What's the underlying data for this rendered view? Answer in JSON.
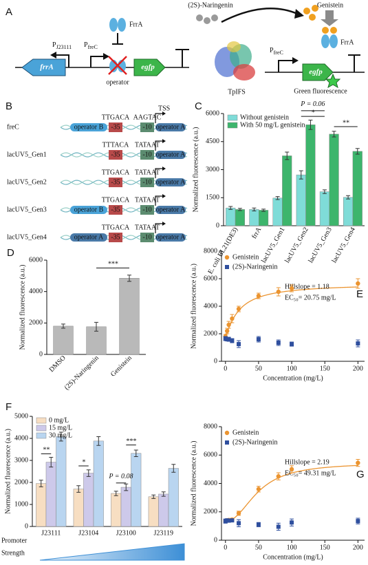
{
  "panel_a": {
    "label": "A",
    "promoter_left": {
      "p": "P",
      "sub": "J23111"
    },
    "promoter_mid": {
      "p": "P",
      "sub": "freC"
    },
    "frra_gene": "frrA",
    "egfp_gene": "egfp",
    "repressor": "FrrA",
    "operator": "operator",
    "substrate": "(2S)-Naringenin",
    "enzyme": "TpIFS",
    "inducer": "Genistein",
    "repressor_2": "FrrA",
    "promoter_right": {
      "p": "P",
      "sub": "freC"
    },
    "egfp_gene_2": "egfp",
    "output": "Green fluorescence"
  },
  "panel_b": {
    "label": "B",
    "box35": "-35",
    "box10": "-10",
    "tss": "TSS",
    "rows": [
      {
        "name": "freC",
        "left_operator": "operator B",
        "motif35": "TTGACA",
        "motif10": "AAGTAC",
        "right_operator": "operator A"
      },
      {
        "name": "lacUV5_Gen1",
        "motif35": "TTTACA",
        "motif10": "TATAAT",
        "right_operator": "operator A"
      },
      {
        "name": "lacUV5_Gen2",
        "motif35": "TTGACA",
        "motif10": "TATAAT",
        "right_operator": "operator A"
      },
      {
        "name": "lacUV5_Gen3",
        "left_operator": "operator B",
        "motif35": "TTGACA",
        "motif10": "TATAAT",
        "right_operator": "operator A"
      },
      {
        "name": "lacUV5_Gen4",
        "left_operator": "operator A",
        "motif35": "TTGACA",
        "motif10": "TATAAT",
        "right_operator": "operator A"
      }
    ]
  },
  "chart_data": [
    {
      "type": "bar",
      "panel": "C",
      "ylabel": "Normalized fluorescence (a.u.)",
      "categories": [
        "E. coli BL21(DE3)",
        "frrA",
        "lacUV5_Gen1",
        "lacUV5_Gen2",
        "lacUV5_Gen3",
        "lacUV5_Gen4"
      ],
      "series": [
        {
          "name": "Without genistein",
          "color": "#7fdcd8",
          "values": [
            950,
            870,
            1480,
            2720,
            1820,
            1520
          ],
          "errors": [
            80,
            80,
            80,
            220,
            100,
            90
          ]
        },
        {
          "name": "With 50 mg/L genistein",
          "color": "#3db56c",
          "values": [
            870,
            830,
            3740,
            5400,
            4900,
            3980
          ],
          "errors": [
            60,
            60,
            200,
            250,
            150,
            150
          ]
        }
      ],
      "ylim": [
        0,
        6000
      ],
      "yticks": [
        0,
        1500,
        3000,
        4500,
        6000
      ],
      "annotations": [
        "*",
        "P = 0.06",
        "**"
      ]
    },
    {
      "type": "bar",
      "panel": "D",
      "ylabel": "Normalized fluorescence (a.u.)",
      "categories": [
        "DMSO",
        "(2S)-Naringenin",
        "Genistein"
      ],
      "series": [
        {
          "color": "#b9b9b9",
          "values": [
            1800,
            1760,
            4850
          ],
          "errors": [
            130,
            280,
            200
          ]
        }
      ],
      "ylim": [
        0,
        6000
      ],
      "yticks": [
        0,
        2000,
        4000,
        6000
      ],
      "annotations": [
        "***"
      ]
    },
    {
      "type": "scatter",
      "panel": "E",
      "xlabel": "Concentration (mg/L)",
      "ylabel": "Normalized fluorescence (a.u.)",
      "series": [
        {
          "name": "Genistein",
          "color": "#eb9430",
          "marker": "circle",
          "x": [
            0,
            2.5,
            5,
            10,
            20,
            50,
            80,
            100,
            200
          ],
          "values": [
            1800,
            2200,
            2650,
            3100,
            3800,
            4750,
            5050,
            5300,
            5650
          ],
          "errors": [
            150,
            200,
            250,
            300,
            200,
            200,
            300,
            250,
            350
          ],
          "fit": {
            "hillslope": {
              "value": 1.18,
              "label": "Hillslope = 1.18"
            },
            "ec50": {
              "value": 20.75,
              "label": "EC₅₀= 20.75 mg/L"
            }
          }
        },
        {
          "name": "(2S)-Naringenin",
          "color": "#2f4f9e",
          "marker": "square",
          "x": [
            0,
            2.5,
            5,
            10,
            20,
            50,
            80,
            100,
            200
          ],
          "values": [
            1650,
            1600,
            1600,
            1500,
            1250,
            1600,
            1350,
            1250,
            1300
          ],
          "errors": [
            150,
            100,
            150,
            150,
            250,
            200,
            200,
            150,
            250
          ]
        }
      ],
      "xlim": [
        -6,
        210
      ],
      "xticks": [
        0,
        50,
        100,
        150,
        200
      ],
      "ylim": [
        0,
        8000
      ],
      "yticks": [
        0,
        2000,
        4000,
        6000,
        8000
      ]
    },
    {
      "type": "bar",
      "panel": "F",
      "ylabel": "Normalized fluorescence (a.u.)",
      "xlabel": [
        "Promoter",
        "Strength"
      ],
      "categories": [
        "J23111",
        "J23104",
        "J23100",
        "J23119"
      ],
      "series": [
        {
          "name": "0 mg/L",
          "color": "#f7dec2",
          "values": [
            1950,
            1700,
            1500,
            1350
          ],
          "errors": [
            150,
            150,
            100,
            80
          ]
        },
        {
          "name": "15 mg/L",
          "color": "#cdc9ea",
          "values": [
            2920,
            2420,
            1780,
            1470
          ],
          "errors": [
            220,
            150,
            150,
            100
          ]
        },
        {
          "name": "30 mg/L",
          "color": "#b9d5f0",
          "values": [
            4080,
            3880,
            3320,
            2640
          ],
          "errors": [
            200,
            200,
            150,
            180
          ]
        }
      ],
      "ylim": [
        0,
        5000
      ],
      "yticks": [
        0,
        1000,
        2000,
        3000,
        4000,
        5000
      ],
      "annotations": [
        "**",
        "*",
        "P = 0.08",
        "***"
      ]
    },
    {
      "type": "scatter",
      "panel": "G",
      "xlabel": "Concentration (mg/L)",
      "ylabel": "Normalized fluorescence (a.u.)",
      "series": [
        {
          "name": "Genistein",
          "color": "#eb9430",
          "marker": "circle",
          "x": [
            0,
            2.5,
            5,
            10,
            20,
            50,
            80,
            100,
            200
          ],
          "values": [
            1350,
            1400,
            1420,
            1450,
            1900,
            3600,
            4500,
            5000,
            5450
          ],
          "errors": [
            100,
            100,
            100,
            100,
            150,
            200,
            250,
            250,
            250
          ],
          "fit": {
            "hillslope": {
              "value": 2.19,
              "label": "Hillslope = 2.19"
            },
            "ec50": {
              "value": 49.31,
              "label": "EC₅₀= 49.31 mg/L"
            }
          }
        },
        {
          "name": "(2S)-Naringenin",
          "color": "#2f4f9e",
          "marker": "square",
          "x": [
            0,
            2.5,
            5,
            10,
            20,
            50,
            80,
            100,
            200
          ],
          "values": [
            1350,
            1400,
            1380,
            1400,
            1200,
            1100,
            950,
            1250,
            1350
          ],
          "errors": [
            150,
            100,
            100,
            100,
            250,
            150,
            250,
            250,
            200
          ]
        }
      ],
      "xlim": [
        -6,
        210
      ],
      "xticks": [
        0,
        50,
        100,
        150,
        200
      ],
      "ylim": [
        0,
        8000
      ],
      "yticks": [
        0,
        2000,
        4000,
        6000,
        8000
      ]
    }
  ]
}
